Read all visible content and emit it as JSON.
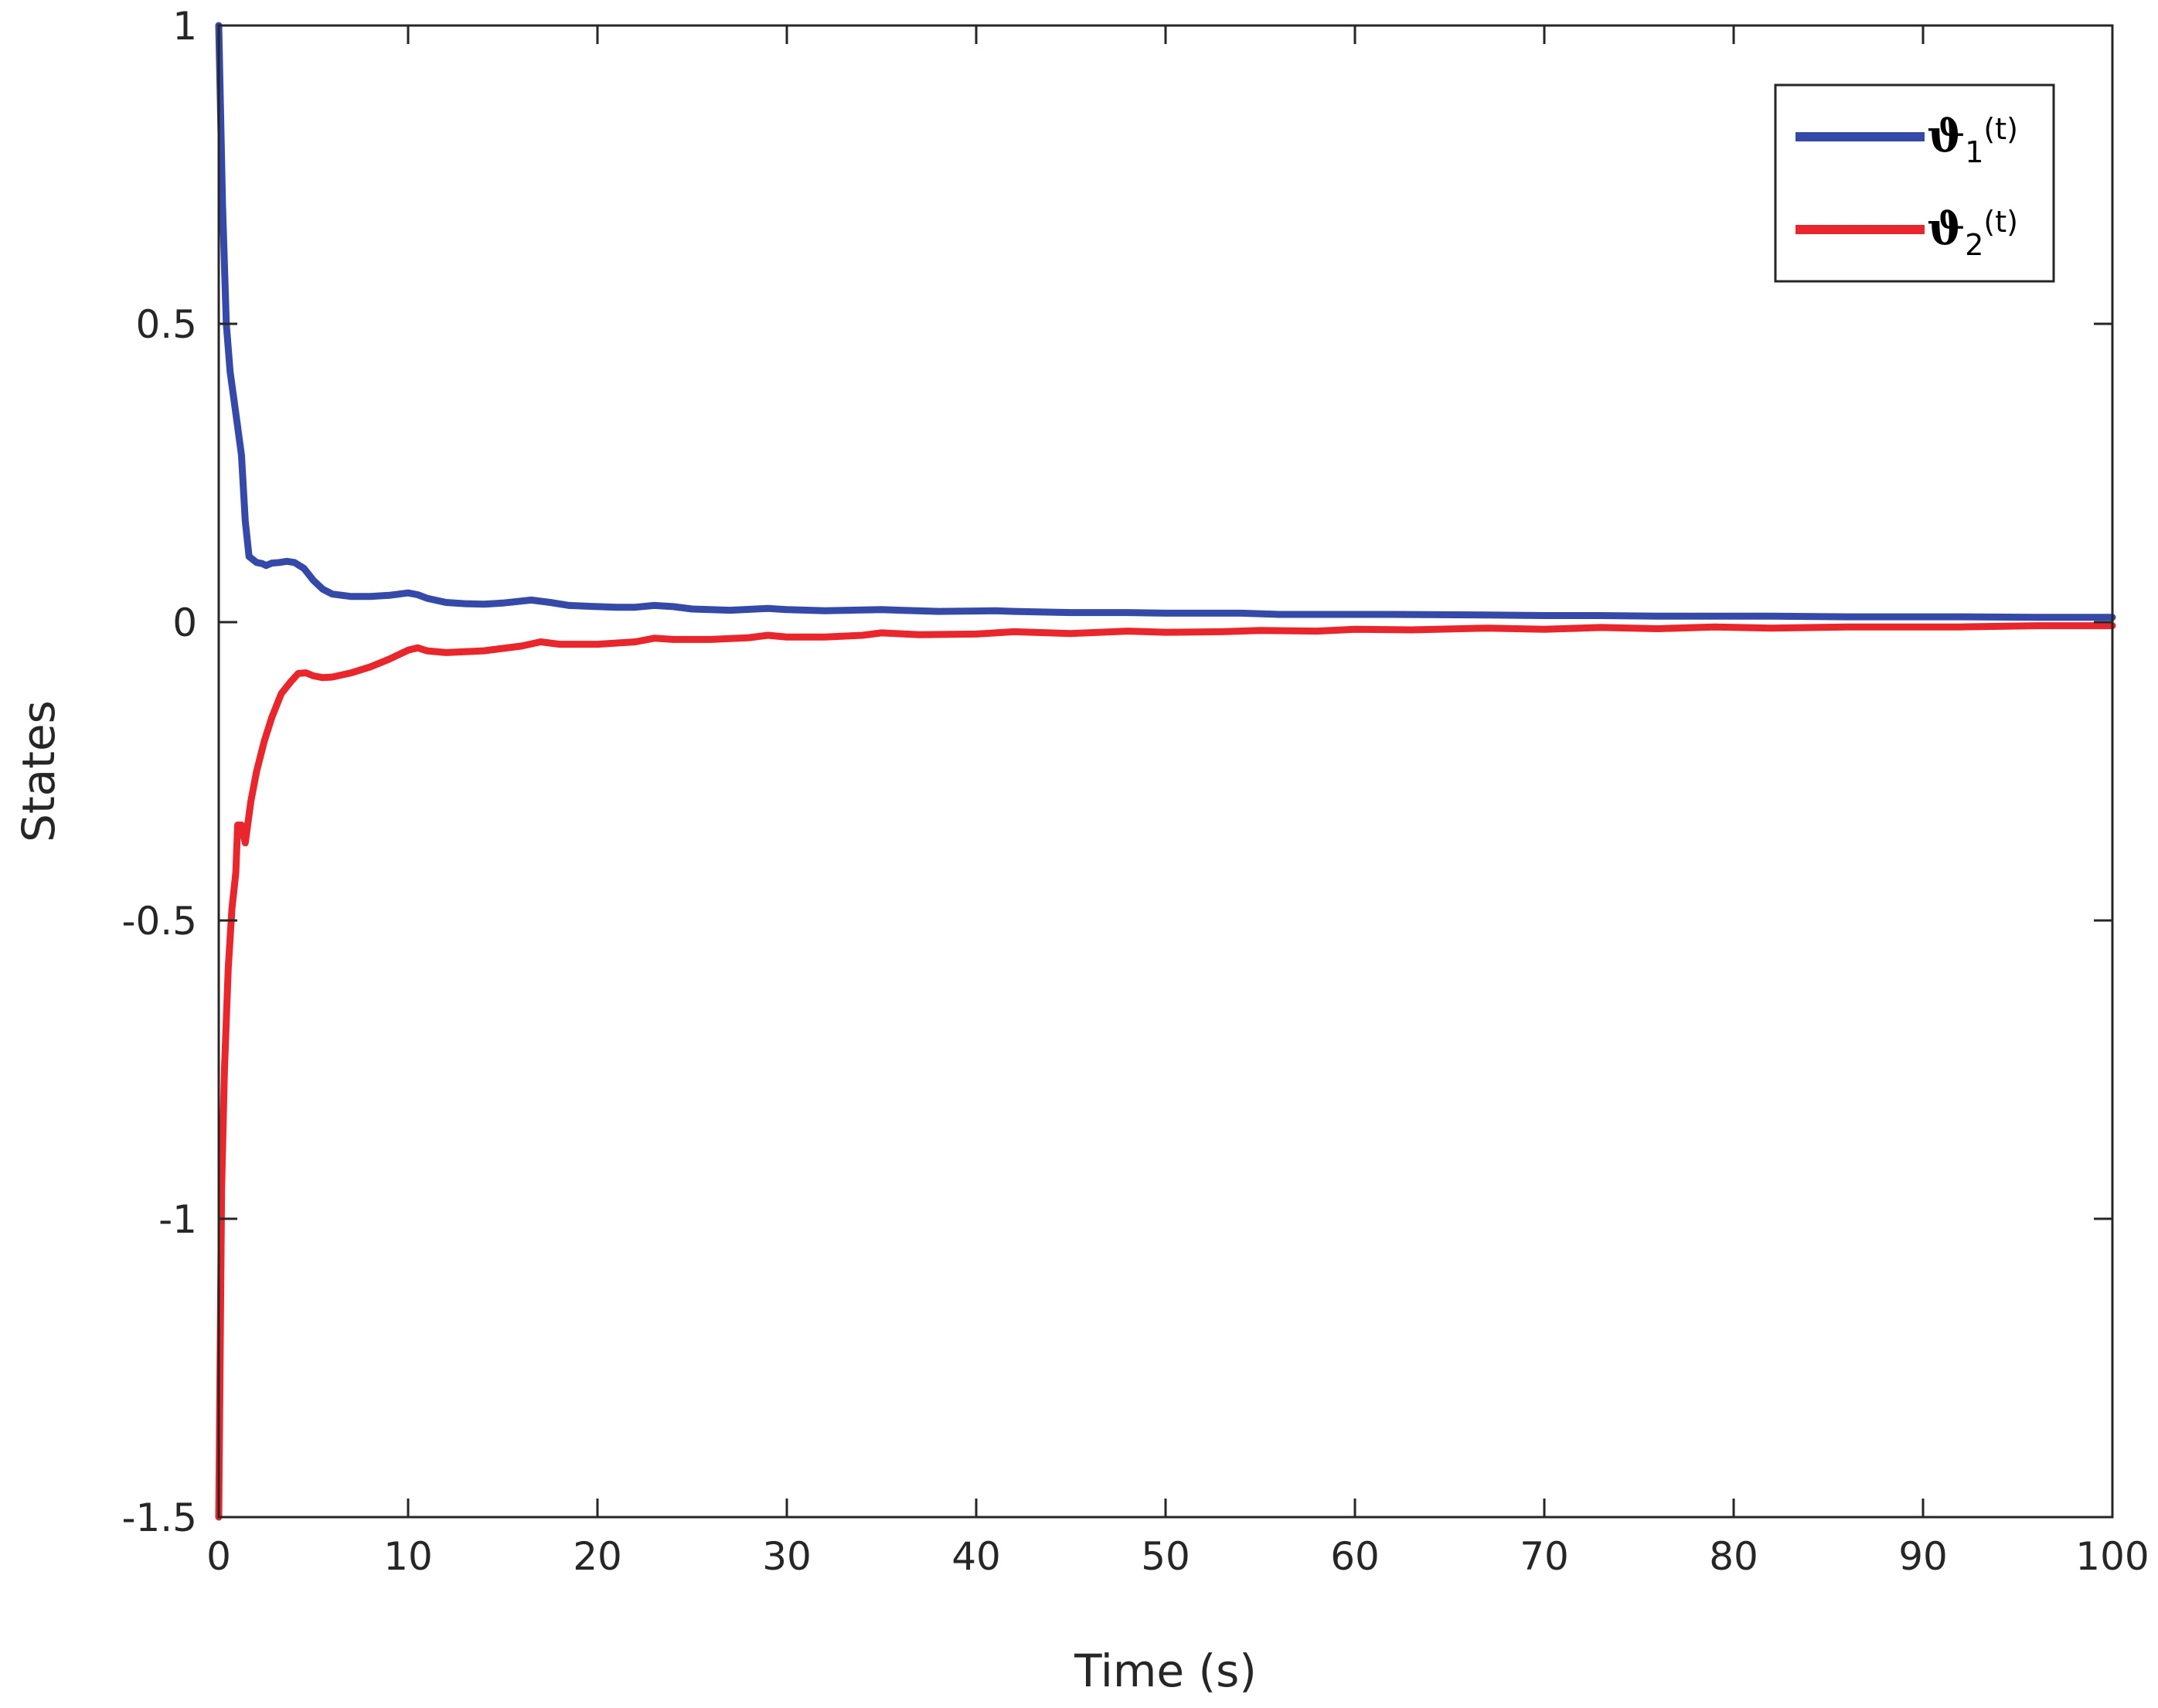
{
  "chart_data": {
    "type": "line",
    "title": "",
    "xlabel": "Time (s)",
    "ylabel": "States",
    "xlim": [
      0,
      100
    ],
    "ylim": [
      -1.5,
      1
    ],
    "xticks": [
      0,
      10,
      20,
      30,
      40,
      50,
      60,
      70,
      80,
      90,
      100
    ],
    "yticks": [
      -1.5,
      -1,
      -0.5,
      0,
      0.5,
      1
    ],
    "xtick_labels": [
      "0",
      "10",
      "20",
      "30",
      "40",
      "50",
      "60",
      "70",
      "80",
      "90",
      "100"
    ],
    "ytick_labels": [
      "-1.5",
      "-1",
      "-0.5",
      "0",
      "0.5",
      "1"
    ],
    "grid": false,
    "legend_position": "top-right",
    "series": [
      {
        "name": "ϑ1(t)",
        "legend_symbol": "ϑ",
        "legend_subscript": "1",
        "legend_suffix": "(t)",
        "color": "#3549a8",
        "x": [
          0,
          0.2,
          0.4,
          0.6,
          0.9,
          1.2,
          1.4,
          1.6,
          2.0,
          2.3,
          2.5,
          2.8,
          3.2,
          3.6,
          4.0,
          4.5,
          5.0,
          5.5,
          6.0,
          7.0,
          8.0,
          9.0,
          10.0,
          10.5,
          11.0,
          12.0,
          13.0,
          14.0,
          15.0,
          16.5,
          17.5,
          18.5,
          20.0,
          21.0,
          22.0,
          23.0,
          24.0,
          25.0,
          27.0,
          29.0,
          30.0,
          32.0,
          35.0,
          36.0,
          38.0,
          41.0,
          42.0,
          45.0,
          48.0,
          50.0,
          54.0,
          56.0,
          60.0,
          62.0,
          67.0,
          70.0,
          73.0,
          76.0,
          80.0,
          82.0,
          86.0,
          88.0,
          92.0,
          96.0,
          100.0
        ],
        "y": [
          1.0,
          0.7,
          0.5,
          0.42,
          0.35,
          0.28,
          0.17,
          0.11,
          0.1,
          0.098,
          0.095,
          0.099,
          0.1,
          0.102,
          0.1,
          0.09,
          0.07,
          0.055,
          0.047,
          0.043,
          0.043,
          0.045,
          0.049,
          0.046,
          0.04,
          0.033,
          0.031,
          0.03,
          0.032,
          0.037,
          0.033,
          0.028,
          0.026,
          0.025,
          0.025,
          0.028,
          0.026,
          0.022,
          0.02,
          0.023,
          0.021,
          0.019,
          0.021,
          0.02,
          0.018,
          0.019,
          0.018,
          0.016,
          0.016,
          0.015,
          0.015,
          0.013,
          0.013,
          0.013,
          0.012,
          0.011,
          0.011,
          0.01,
          0.01,
          0.01,
          0.009,
          0.009,
          0.009,
          0.008,
          0.008
        ]
      },
      {
        "name": "ϑ2(t)",
        "legend_symbol": "ϑ",
        "legend_subscript": "2",
        "legend_suffix": "(t)",
        "color": "#e8262b",
        "x": [
          0,
          0.15,
          0.3,
          0.5,
          0.7,
          0.9,
          1.0,
          1.2,
          1.4,
          1.7,
          2.0,
          2.4,
          2.8,
          3.3,
          3.8,
          4.2,
          4.6,
          5.0,
          5.5,
          6.0,
          7.0,
          8.0,
          9.0,
          10.0,
          10.5,
          11.0,
          12.0,
          14.0,
          16.0,
          17.0,
          18.0,
          20.0,
          22.0,
          23.0,
          24.0,
          26.0,
          28.0,
          29.0,
          30.0,
          32.0,
          34.0,
          35.0,
          37.0,
          40.0,
          42.0,
          45.0,
          48.0,
          50.0,
          53.0,
          55.0,
          58.0,
          60.0,
          63.0,
          67.0,
          70.0,
          73.0,
          76.0,
          79.0,
          82.0,
          86.0,
          88.0,
          92.0,
          96.0,
          100.0
        ],
        "y": [
          -1.5,
          -0.95,
          -0.75,
          -0.58,
          -0.48,
          -0.42,
          -0.34,
          -0.34,
          -0.37,
          -0.3,
          -0.25,
          -0.2,
          -0.16,
          -0.12,
          -0.1,
          -0.086,
          -0.085,
          -0.09,
          -0.093,
          -0.092,
          -0.085,
          -0.075,
          -0.062,
          -0.047,
          -0.043,
          -0.048,
          -0.051,
          -0.048,
          -0.04,
          -0.033,
          -0.037,
          -0.037,
          -0.033,
          -0.027,
          -0.029,
          -0.029,
          -0.026,
          -0.022,
          -0.025,
          -0.025,
          -0.022,
          -0.018,
          -0.021,
          -0.02,
          -0.016,
          -0.019,
          -0.015,
          -0.017,
          -0.016,
          -0.014,
          -0.015,
          -0.012,
          -0.013,
          -0.01,
          -0.012,
          -0.009,
          -0.011,
          -0.008,
          -0.01,
          -0.008,
          -0.008,
          -0.008,
          -0.006,
          -0.006
        ]
      }
    ]
  }
}
